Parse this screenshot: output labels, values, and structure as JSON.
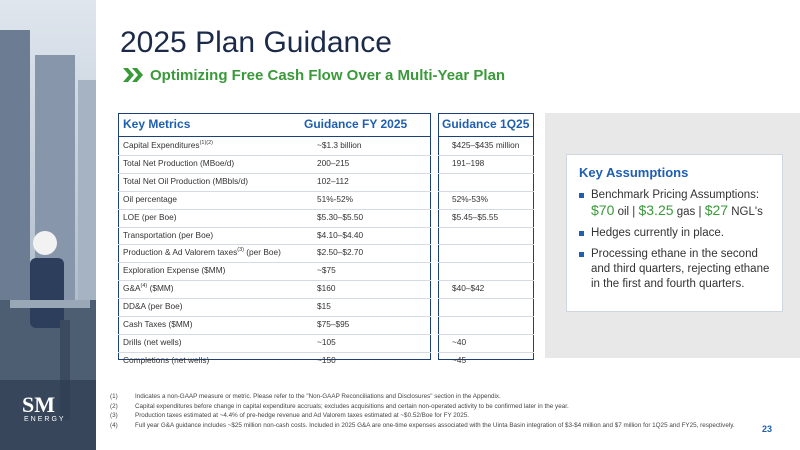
{
  "header": {
    "title": "2025 Plan Guidance",
    "subtitle": "Optimizing Free Cash Flow Over a Multi-Year Plan"
  },
  "logo": {
    "mark": "SM",
    "name": "ENERGY"
  },
  "table": {
    "columns": [
      "Key Metrics",
      "Guidance FY 2025",
      "Guidance 1Q25"
    ],
    "rows": [
      {
        "label": "Capital Expenditures",
        "note": "(1)(2)",
        "fy": "~$1.3 billion",
        "q1": "$425–$435 million"
      },
      {
        "label": "Total Net Production (MBoe/d)",
        "fy": "200–215",
        "q1": "191–198"
      },
      {
        "label": "Total Net Oil Production (MBbls/d)",
        "fy": "102–112"
      },
      {
        "label": "Oil percentage",
        "fy": "51%-52%",
        "q1": "52%-53%"
      },
      {
        "label": "LOE (per Boe)",
        "fy": "$5.30–$5.50",
        "q1": "$5.45–$5.55"
      },
      {
        "label": "Transportation (per Boe)",
        "fy": "$4.10–$4.40"
      },
      {
        "label": "Production & Ad Valorem taxes",
        "note": "(3)",
        "label_end": "(per Boe)",
        "fy": "$2.50–$2.70"
      },
      {
        "label": "Exploration Expense ($MM)",
        "fy": "~$75"
      },
      {
        "label": "G&A",
        "note": "(4)",
        "label_end": "($MM)",
        "fy": "$160",
        "q1": "$40–$42"
      },
      {
        "label": "DD&A (per Boe)",
        "fy": "$15"
      },
      {
        "label": "Cash Taxes ($MM)",
        "fy": "$75–$95"
      },
      {
        "label": "Drills (net wells)",
        "fy": "~105",
        "q1": "~40"
      },
      {
        "label": "Completions (net wells)",
        "fy": "~150",
        "q1": "~45"
      }
    ]
  },
  "assumptions": {
    "title": "Key Assumptions",
    "pricing_label": "Benchmark Pricing Assumptions:",
    "separator": "|",
    "prices": [
      {
        "value": "$70",
        "unit": "oil"
      },
      {
        "value": "$3.25",
        "unit": "gas"
      },
      {
        "value": "$27",
        "unit": "NGL's"
      }
    ],
    "bullets": [
      "Hedges currently in place.",
      "Processing ethane in the second and third quarters, rejecting ethane in the first and fourth quarters."
    ]
  },
  "footnotes": [
    {
      "num": "(1)",
      "text": "Indicates a non-GAAP measure or metric. Please refer to the \"Non-GAAP Reconciliations and Disclosures\" section in the Appendix."
    },
    {
      "num": "(2)",
      "text": "Capital expenditures before change in capital expenditure accruals; excludes acquisitions and certain non-operated activity to be confirmed later in the year."
    },
    {
      "num": "(3)",
      "text": "Production taxes estimated at ~4.4% of pre-hedge revenue and Ad Valorem taxes estimated at ~$0.52/Boe for FY 2025."
    },
    {
      "num": "(4)",
      "text": "Full year G&A guidance includes ~$25 million non-cash costs. Included in 2025 G&A are one-time expenses associated with the Uinta Basin integration of $3-$4 million and $7 million for 1Q25 and FY25, respectively."
    }
  ],
  "page_number": "23"
}
